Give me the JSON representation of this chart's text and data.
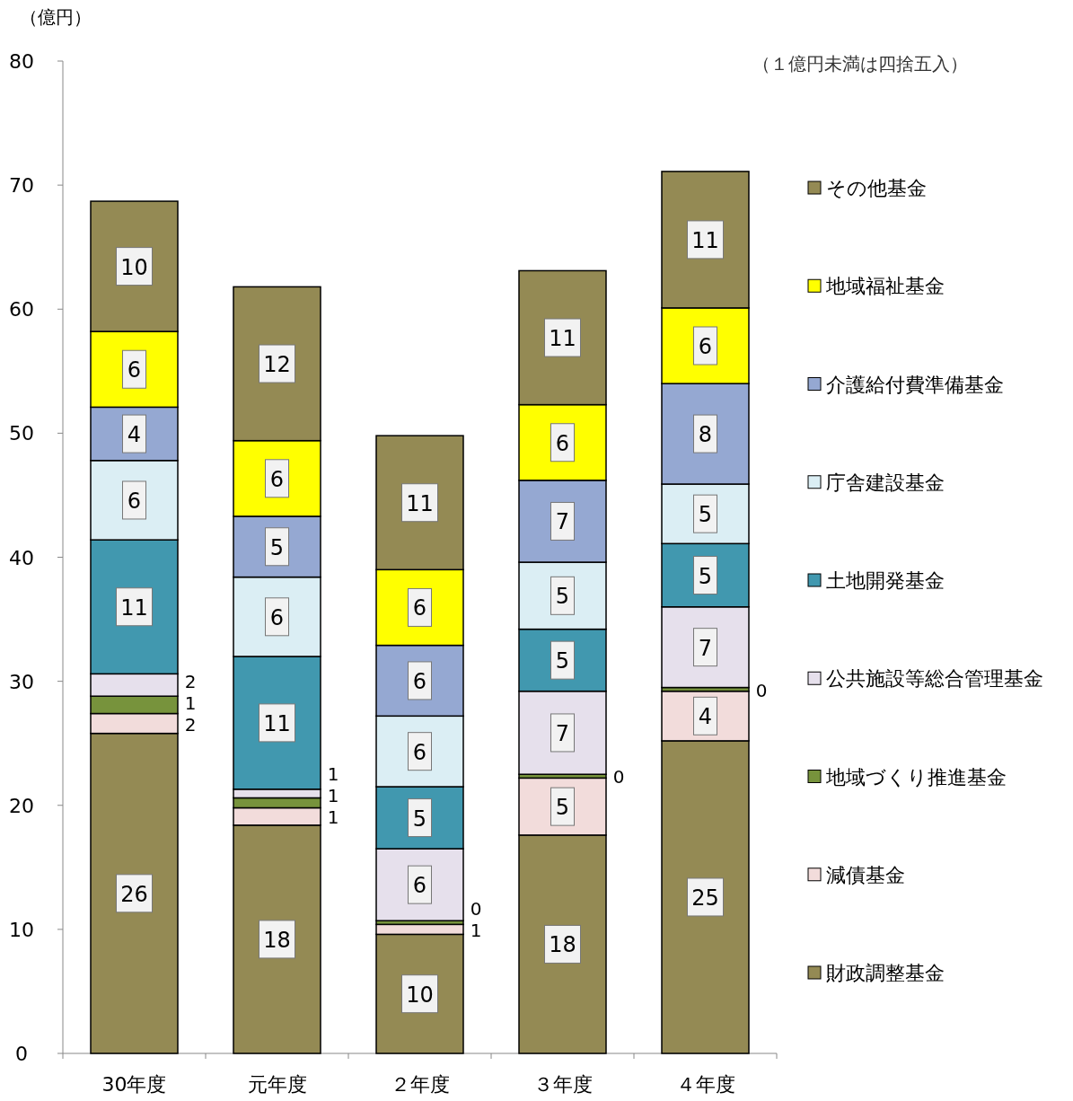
{
  "chart_data": {
    "type": "bar",
    "stacked": true,
    "ylabel": "（億円）",
    "annotations": [
      "（１億円未満は四捨五入）"
    ],
    "categories": [
      "30年度",
      "元年度",
      "２年度",
      "３年度",
      "４年度"
    ],
    "ylim": [
      0,
      80
    ],
    "yticks": [
      0,
      10,
      20,
      30,
      40,
      50,
      60,
      70,
      80
    ],
    "grid": false,
    "legend": "right",
    "series": [
      {
        "name": "財政調整基金",
        "color": "#948a54",
        "values": [
          25.8,
          18.4,
          9.6,
          17.6,
          25.2
        ],
        "value_labels": [
          "26",
          "18",
          "10",
          "18",
          "25"
        ]
      },
      {
        "name": "減債基金",
        "color": "#f2dcdb",
        "values": [
          1.6,
          1.4,
          0.8,
          4.6,
          4.0
        ],
        "value_labels": [
          "2",
          "1",
          "1",
          "5",
          "4"
        ]
      },
      {
        "name": "地域づくり推進基金",
        "color": "#77933c",
        "values": [
          1.4,
          0.8,
          0.3,
          0.3,
          0.3
        ],
        "value_labels": [
          "1",
          "1",
          "0",
          "0",
          "0"
        ]
      },
      {
        "name": "公共施設等総合管理基金",
        "color": "#e6e0ec",
        "values": [
          1.8,
          0.7,
          5.8,
          6.7,
          6.5
        ],
        "value_labels": [
          "2",
          "1",
          "6",
          "7",
          "7"
        ]
      },
      {
        "name": "土地開発基金",
        "color": "#4198af",
        "values": [
          10.8,
          10.7,
          5.0,
          5.0,
          5.1
        ],
        "value_labels": [
          "11",
          "11",
          "5",
          "5",
          "5"
        ]
      },
      {
        "name": "庁舎建設基金",
        "color": "#dbeef4",
        "values": [
          6.4,
          6.4,
          5.7,
          5.4,
          4.8
        ],
        "value_labels": [
          "6",
          "6",
          "6",
          "5",
          "5"
        ]
      },
      {
        "name": "介護給付費準備基金",
        "color": "#95a8d2",
        "values": [
          4.3,
          4.9,
          5.7,
          6.6,
          8.1
        ],
        "value_labels": [
          "4",
          "5",
          "6",
          "7",
          "8"
        ]
      },
      {
        "name": "地域福祉基金",
        "color": "#ffff00",
        "values": [
          6.1,
          6.1,
          6.1,
          6.1,
          6.1
        ],
        "value_labels": [
          "6",
          "6",
          "6",
          "6",
          "6"
        ]
      },
      {
        "name": "その他基金",
        "color": "#948a54",
        "values": [
          10.5,
          12.4,
          10.8,
          10.8,
          11.0
        ],
        "value_labels": [
          "10",
          "12",
          "11",
          "11",
          "11"
        ]
      }
    ]
  }
}
